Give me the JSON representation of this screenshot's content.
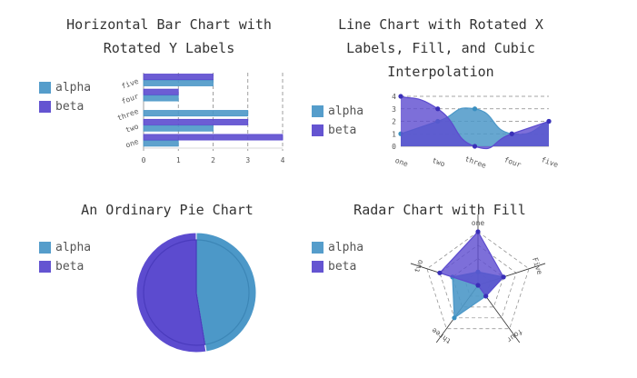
{
  "colors": {
    "alpha": "#4c98c8",
    "beta": "#5c4bcf",
    "beta_dark": "#3a2fb8",
    "grid": "#888888"
  },
  "chart_data": [
    {
      "type": "bar",
      "orientation": "horizontal",
      "title": "Horizontal Bar Chart with\nRotated Y Labels",
      "categories": [
        "one",
        "two",
        "three",
        "four",
        "five"
      ],
      "series": [
        {
          "name": "alpha",
          "values": [
            1,
            2,
            3,
            1,
            2
          ]
        },
        {
          "name": "beta",
          "values": [
            4,
            3,
            0,
            1,
            2
          ]
        }
      ],
      "xlim": [
        0,
        4
      ],
      "x_ticks": [
        "0",
        "1",
        "2",
        "3",
        "4"
      ],
      "grid": true,
      "legend": "left"
    },
    {
      "type": "line",
      "title": "Line Chart with Rotated X\nLabels, Fill, and Cubic\nInterpolation",
      "categories": [
        "one",
        "two",
        "three",
        "four",
        "five"
      ],
      "series": [
        {
          "name": "alpha",
          "values": [
            1,
            2,
            3,
            1,
            2
          ]
        },
        {
          "name": "beta",
          "values": [
            4,
            3,
            0,
            1,
            2
          ]
        }
      ],
      "ylim": [
        0,
        4
      ],
      "y_ticks": [
        "0",
        "1",
        "2",
        "3",
        "4"
      ],
      "fill": true,
      "interpolation": "cubic",
      "grid": true,
      "legend": "left"
    },
    {
      "type": "pie",
      "title": "An Ordinary Pie Chart",
      "series": [
        {
          "name": "alpha",
          "values": [
            1,
            2,
            3,
            1,
            2
          ]
        },
        {
          "name": "beta",
          "values": [
            4,
            3,
            0,
            1,
            2
          ]
        }
      ],
      "legend": "left"
    },
    {
      "type": "radar",
      "title": "Radar Chart with Fill",
      "categories": [
        "one",
        "Five",
        "four",
        "three",
        "two"
      ],
      "series": [
        {
          "name": "alpha",
          "values": [
            1,
            2,
            1,
            3,
            2
          ]
        },
        {
          "name": "beta",
          "values": [
            4,
            2,
            1,
            0,
            3
          ]
        }
      ],
      "rlim": [
        0,
        4
      ],
      "fill": true,
      "legend": "left"
    }
  ]
}
